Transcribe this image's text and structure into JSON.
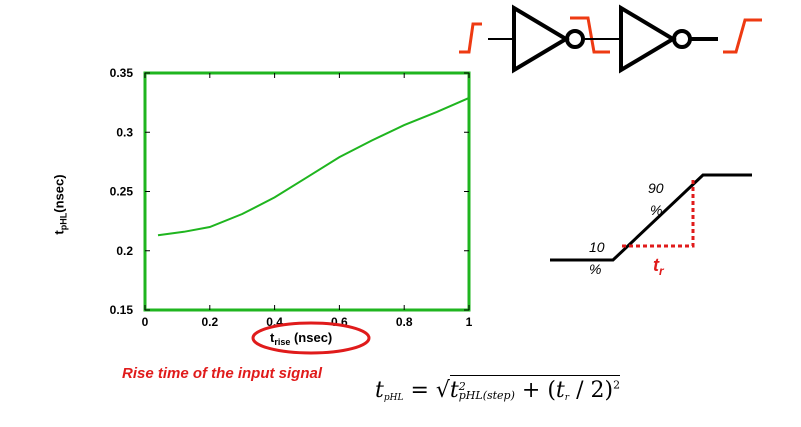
{
  "chart_data": {
    "type": "line",
    "xlabel_main": "t",
    "xlabel_sub": "rise",
    "xlabel_unit": " (nsec)",
    "ylabel_main": "t",
    "ylabel_sub": "pHL",
    "ylabel_unit": "(nsec)",
    "xlim": [
      0,
      1
    ],
    "ylim": [
      0.15,
      0.35
    ],
    "x_ticks": [
      "0",
      "0.2",
      "0.4",
      "0.6",
      "0.8",
      "1"
    ],
    "y_ticks": [
      "0.15",
      "0.2",
      "0.25",
      "0.3",
      "0.35"
    ],
    "series": [
      {
        "color": "#1fb51f",
        "points": [
          [
            0.04,
            0.213
          ],
          [
            0.12,
            0.216
          ],
          [
            0.2,
            0.22
          ],
          [
            0.3,
            0.231
          ],
          [
            0.4,
            0.245
          ],
          [
            0.5,
            0.262
          ],
          [
            0.6,
            0.279
          ],
          [
            0.7,
            0.293
          ],
          [
            0.8,
            0.306
          ],
          [
            0.9,
            0.317
          ],
          [
            1.0,
            0.329
          ]
        ]
      }
    ],
    "frame_color": "#1fb51f",
    "grid": false
  },
  "annotation": {
    "caption": "Rise time of the input signal",
    "caption_color": "#e01b1b",
    "highlight_color": "#e01b1b"
  },
  "ramp_diagram": {
    "low_pct": "10\n%",
    "high_pct": "90\n%",
    "tr_main": "t",
    "tr_sub": "r"
  },
  "formula": {
    "lhs_main": "t",
    "lhs_sub": "pHL",
    "eq": "=",
    "term1_main": "t",
    "term1_sup": "2",
    "term1_sub": "pHL(step)",
    "plus": "+ (",
    "tr_main": "t",
    "tr_sub": "r",
    "tail": "/ 2)",
    "tail_sup": "2"
  },
  "inverter_chain": {
    "signal_color": "#ee3a12",
    "gate_count": 2
  }
}
